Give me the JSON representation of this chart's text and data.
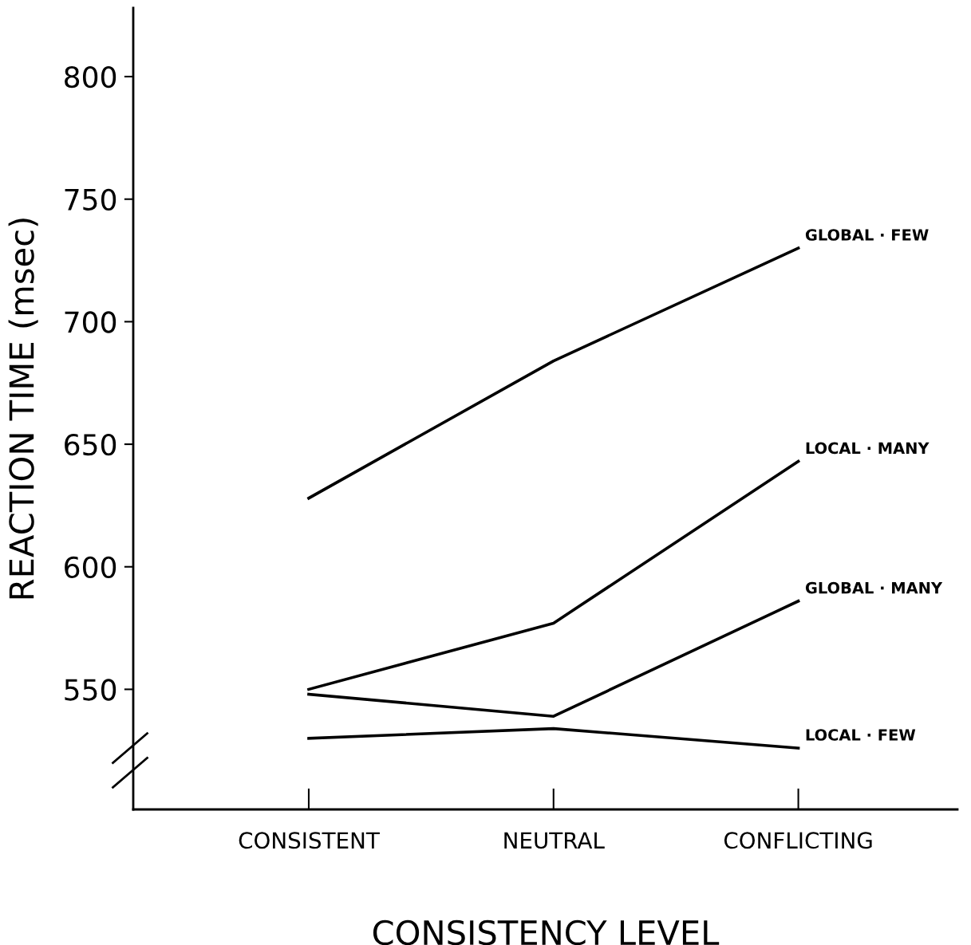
{
  "chart_data": {
    "type": "line",
    "xlabel": "CONSISTENCY LEVEL",
    "ylabel": "REACTION TIME (msec)",
    "categories": [
      "CONSISTENT",
      "NEUTRAL",
      "CONFLICTING"
    ],
    "series": [
      {
        "name": "GLOBAL · FEW",
        "color": "#000000",
        "values": [
          628,
          684,
          730
        ]
      },
      {
        "name": "LOCAL · MANY",
        "color": "#000000",
        "values": [
          550,
          577,
          643
        ]
      },
      {
        "name": "GLOBAL · MANY",
        "color": "#000000",
        "values": [
          548,
          539,
          586
        ]
      },
      {
        "name": "LOCAL · FEW",
        "color": "#000000",
        "values": [
          530,
          534,
          526
        ]
      }
    ],
    "ylim": [
      501,
      828
    ],
    "yticks": [
      550,
      600,
      650,
      700,
      750,
      800
    ],
    "grid": false,
    "legend": false,
    "marker": "none",
    "line_style": "solid"
  }
}
